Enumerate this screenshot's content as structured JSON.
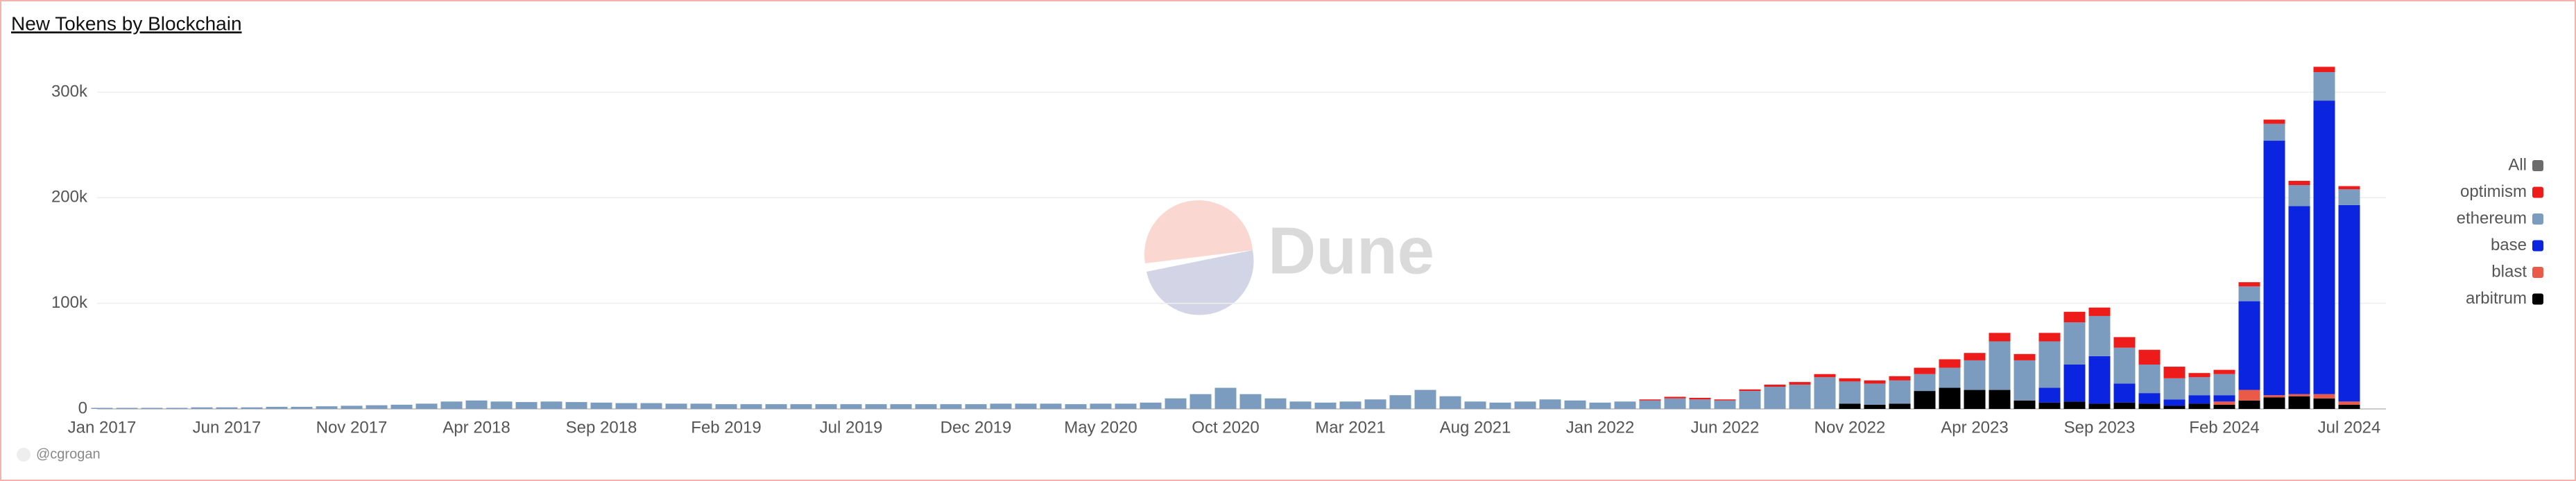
{
  "chart_data": {
    "type": "stacked_bar",
    "title": "New Tokens by Blockchain",
    "credit": "@cgrogan",
    "watermark": "Dune",
    "legend_all": {
      "label": "All",
      "color": "#6b6b6b"
    },
    "legend_position": "right",
    "grid": true,
    "categories": [
      "Jan 2017",
      null,
      null,
      null,
      null,
      "Jun 2017",
      null,
      null,
      null,
      null,
      "Nov 2017",
      null,
      null,
      null,
      null,
      "Apr 2018",
      null,
      null,
      null,
      null,
      "Sep 2018",
      null,
      null,
      null,
      null,
      "Feb 2019",
      null,
      null,
      null,
      null,
      "Jul 2019",
      null,
      null,
      null,
      null,
      "Dec 2019",
      null,
      null,
      null,
      null,
      "May 2020",
      null,
      null,
      null,
      null,
      "Oct 2020",
      null,
      null,
      null,
      null,
      "Mar 2021",
      null,
      null,
      null,
      null,
      "Aug 2021",
      null,
      null,
      null,
      null,
      "Jan 2022",
      null,
      null,
      null,
      null,
      "Jun 2022",
      null,
      null,
      null,
      null,
      "Nov 2022",
      null,
      null,
      null,
      null,
      "Apr 2023",
      null,
      null,
      null,
      null,
      "Sep 2023",
      null,
      null,
      null,
      null,
      "Feb 2024",
      null,
      null,
      null,
      null,
      "Jul 2024"
    ],
    "ylim": [
      0,
      340000
    ],
    "yticks": [
      0,
      {
        "value": 100000,
        "label": "100k"
      },
      {
        "value": 200000,
        "label": "200k"
      },
      {
        "value": 300000,
        "label": "300k"
      }
    ],
    "series": [
      {
        "name": "arbitrum",
        "color": "#000000",
        "values": [
          0,
          0,
          0,
          0,
          0,
          0,
          0,
          0,
          0,
          0,
          0,
          0,
          0,
          0,
          0,
          0,
          0,
          0,
          0,
          0,
          0,
          0,
          0,
          0,
          0,
          0,
          0,
          0,
          0,
          0,
          0,
          0,
          0,
          0,
          0,
          0,
          0,
          0,
          0,
          0,
          0,
          0,
          0,
          0,
          0,
          0,
          0,
          0,
          0,
          0,
          0,
          0,
          0,
          0,
          0,
          0,
          0,
          0,
          0,
          0,
          0,
          0,
          0,
          0,
          0,
          0,
          0,
          0,
          0,
          0,
          5000,
          4000,
          5000,
          17000,
          20000,
          18000,
          18000,
          8000,
          6000,
          7000,
          5000,
          6000,
          5000,
          3000,
          5000,
          4000,
          8000,
          11000,
          12000,
          10000,
          4000
        ]
      },
      {
        "name": "blast",
        "color": "#ea5a47",
        "values": [
          0,
          0,
          0,
          0,
          0,
          0,
          0,
          0,
          0,
          0,
          0,
          0,
          0,
          0,
          0,
          0,
          0,
          0,
          0,
          0,
          0,
          0,
          0,
          0,
          0,
          0,
          0,
          0,
          0,
          0,
          0,
          0,
          0,
          0,
          0,
          0,
          0,
          0,
          0,
          0,
          0,
          0,
          0,
          0,
          0,
          0,
          0,
          0,
          0,
          0,
          0,
          0,
          0,
          0,
          0,
          0,
          0,
          0,
          0,
          0,
          0,
          0,
          0,
          0,
          0,
          0,
          0,
          0,
          0,
          0,
          0,
          0,
          0,
          0,
          0,
          0,
          0,
          0,
          0,
          0,
          0,
          0,
          0,
          0,
          0,
          3000,
          10000,
          2000,
          2000,
          4000,
          3000
        ]
      },
      {
        "name": "base",
        "color": "#0b24e0",
        "values": [
          0,
          0,
          0,
          0,
          0,
          0,
          0,
          0,
          0,
          0,
          0,
          0,
          0,
          0,
          0,
          0,
          0,
          0,
          0,
          0,
          0,
          0,
          0,
          0,
          0,
          0,
          0,
          0,
          0,
          0,
          0,
          0,
          0,
          0,
          0,
          0,
          0,
          0,
          0,
          0,
          0,
          0,
          0,
          0,
          0,
          0,
          0,
          0,
          0,
          0,
          0,
          0,
          0,
          0,
          0,
          0,
          0,
          0,
          0,
          0,
          0,
          0,
          0,
          0,
          0,
          0,
          0,
          0,
          0,
          0,
          0,
          0,
          0,
          0,
          0,
          0,
          0,
          0,
          14000,
          35000,
          45000,
          18000,
          10000,
          6000,
          8000,
          6000,
          84000,
          241000,
          178000,
          278000,
          186000
        ]
      },
      {
        "name": "ethereum",
        "color": "#7b9cbf",
        "values": [
          1000,
          1000,
          1000,
          1000,
          1500,
          1500,
          1500,
          2000,
          2000,
          2500,
          3000,
          3500,
          4000,
          5000,
          7000,
          8000,
          7000,
          6500,
          7000,
          6500,
          6000,
          5500,
          5500,
          5000,
          5000,
          4500,
          4500,
          4500,
          4500,
          4500,
          4500,
          4500,
          4500,
          4500,
          4500,
          4500,
          5000,
          5000,
          5000,
          4500,
          5000,
          5000,
          6000,
          10000,
          14000,
          20000,
          14000,
          10000,
          7000,
          6000,
          7000,
          9000,
          13000,
          18000,
          12000,
          7000,
          6000,
          7000,
          9000,
          8000,
          6000,
          7000,
          8000,
          10000,
          9000,
          8000,
          17000,
          21000,
          23000,
          30000,
          21000,
          20000,
          22000,
          16000,
          19000,
          28000,
          46000,
          38000,
          44000,
          40000,
          38000,
          34000,
          27000,
          20000,
          17000,
          20000,
          14000,
          16000,
          20000,
          27000,
          15000
        ]
      },
      {
        "name": "optimism",
        "color": "#ee1b1b",
        "values": [
          0,
          0,
          0,
          0,
          0,
          0,
          0,
          0,
          0,
          0,
          0,
          0,
          0,
          0,
          0,
          0,
          0,
          0,
          0,
          0,
          0,
          0,
          0,
          0,
          0,
          0,
          0,
          0,
          0,
          0,
          0,
          0,
          0,
          0,
          0,
          0,
          0,
          0,
          0,
          0,
          0,
          0,
          0,
          0,
          0,
          0,
          0,
          0,
          0,
          0,
          0,
          0,
          0,
          0,
          0,
          0,
          0,
          0,
          0,
          0,
          0,
          0,
          1000,
          1500,
          1500,
          1000,
          1500,
          2000,
          2500,
          3000,
          3000,
          3000,
          4000,
          6000,
          8000,
          7000,
          8000,
          6000,
          8000,
          10000,
          8000,
          10000,
          14000,
          11000,
          4000,
          4000,
          4000,
          4000,
          4000,
          5000,
          3000
        ]
      }
    ]
  }
}
